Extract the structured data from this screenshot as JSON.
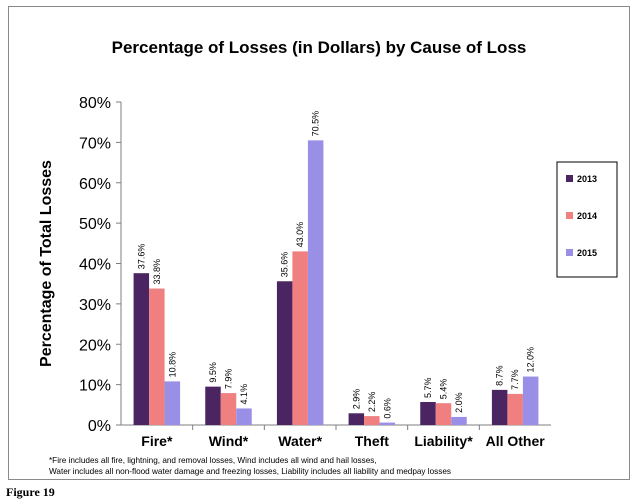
{
  "chart_data": {
    "type": "bar",
    "title": "Percentage of Losses (in Dollars) by Cause of Loss",
    "ylabel": "Percentage of Total Losses",
    "xlabel": "",
    "ylim": [
      0,
      80
    ],
    "yticks": [
      "0%",
      "10%",
      "20%",
      "30%",
      "40%",
      "50%",
      "60%",
      "70%",
      "80%"
    ],
    "categories": [
      "Fire*",
      "Wind*",
      "Water*",
      "Theft",
      "Liability*",
      "All Other"
    ],
    "series": [
      {
        "name": "2013",
        "color": "#4b2562",
        "values": [
          37.6,
          9.5,
          35.6,
          2.9,
          5.7,
          8.7
        ],
        "labels": [
          "37.6%",
          "9.5%",
          "35.6%",
          "2.9%",
          "5.7%",
          "8.7%"
        ]
      },
      {
        "name": "2014",
        "color": "#f07f80",
        "values": [
          33.8,
          7.9,
          43.0,
          2.2,
          5.4,
          7.7
        ],
        "labels": [
          "33.8%",
          "7.9%",
          "43.0%",
          "2.2%",
          "5.4%",
          "7.7%"
        ]
      },
      {
        "name": "2015",
        "color": "#9a8fe6",
        "values": [
          10.8,
          4.1,
          70.5,
          0.6,
          2.0,
          12.0
        ],
        "labels": [
          "10.8%",
          "4.1%",
          "70.5%",
          "0.6%",
          "2.0%",
          "12.0%"
        ]
      }
    ],
    "legend_position": "right",
    "grid": false,
    "footnotes": [
      "*Fire includes  all fire, lightning, and removal losses, Wind includes all wind and hail losses,",
      "Water includes all non-flood water damage and freezing losses, Liability  includes all liability and medpay  losses"
    ]
  },
  "figure_label": "Figure 19"
}
